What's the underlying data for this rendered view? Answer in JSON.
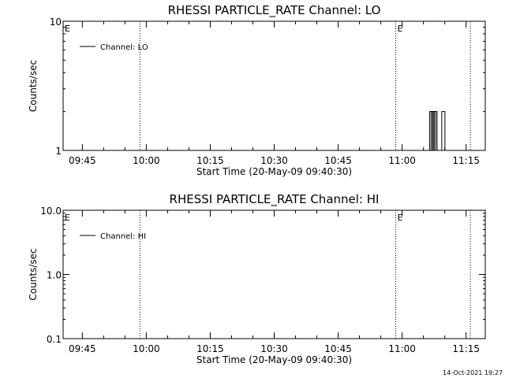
{
  "footer_timestamp": "14-Oct-2021 19:27",
  "chart_data": [
    {
      "type": "line",
      "title": "RHESSI PARTICLE_RATE Channel: LO",
      "xlabel": "Start Time (20-May-09 09:40:30)",
      "ylabel": "Counts/sec",
      "yscale": "log",
      "ylim": [
        1,
        10
      ],
      "ytick_values": [
        1,
        10
      ],
      "ytick_labels": [
        "1",
        "10"
      ],
      "xlim": [
        "09:40:30",
        "11:19:30"
      ],
      "xtick_labels": [
        "09:45",
        "10:00",
        "10:15",
        "10:30",
        "10:45",
        "11:00",
        "11:15"
      ],
      "legend": {
        "label": "Channel: LO",
        "position": "top-left"
      },
      "vlines": [
        "09:58:30",
        "10:58:30",
        "11:16:00"
      ],
      "event_markers": [
        {
          "label": "E",
          "x": "09:40:30"
        },
        {
          "label": "E",
          "x": "10:58:30"
        }
      ],
      "series": [
        {
          "name": "Channel: LO",
          "x": [
            "11:06:50",
            "11:07:10",
            "11:07:30",
            "11:07:50",
            "11:09:40"
          ],
          "values": [
            2,
            2,
            2,
            2,
            2
          ]
        }
      ]
    },
    {
      "type": "line",
      "title": "RHESSI PARTICLE_RATE Channel: HI",
      "xlabel": "Start Time (20-May-09 09:40:30)",
      "ylabel": "Counts/sec",
      "yscale": "log",
      "ylim": [
        0.1,
        10
      ],
      "ytick_values": [
        0.1,
        1,
        10
      ],
      "ytick_labels": [
        "0.1",
        "1.0",
        "10.0"
      ],
      "xlim": [
        "09:40:30",
        "11:19:30"
      ],
      "xtick_labels": [
        "09:45",
        "10:00",
        "10:15",
        "10:30",
        "10:45",
        "11:00",
        "11:15"
      ],
      "legend": {
        "label": "Channel: HI",
        "position": "top-left"
      },
      "vlines": [
        "09:58:30",
        "10:58:30",
        "11:16:00"
      ],
      "event_markers": [
        {
          "label": "E",
          "x": "09:40:30"
        },
        {
          "label": "E",
          "x": "10:58:30"
        }
      ],
      "series": [
        {
          "name": "Channel: HI",
          "x": [],
          "values": []
        }
      ]
    }
  ]
}
